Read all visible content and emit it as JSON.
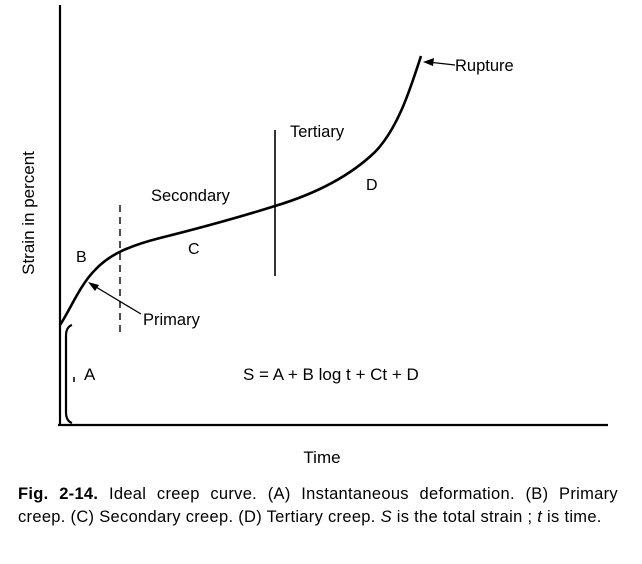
{
  "diagram": {
    "y_axis_label": "Strain in percent",
    "x_axis_label": "Time",
    "labels": {
      "rupture": "Rupture",
      "tertiary": "Tertiary",
      "secondary": "Secondary",
      "primary": "Primary",
      "b": "B",
      "c": "C",
      "d": "D",
      "a": "A"
    },
    "equation": "S = A + B log t + Ct + D"
  },
  "caption": {
    "lead": "Fig. 2-14.",
    "text1": " Ideal creep curve. (A) Instantaneous deformation. (B) Primary creep. (C) Secondary creep. (D) Tertiary creep. ",
    "s_var": "S",
    "text2": " is the total strain ; ",
    "t_var": "t",
    "text3": " is time."
  }
}
